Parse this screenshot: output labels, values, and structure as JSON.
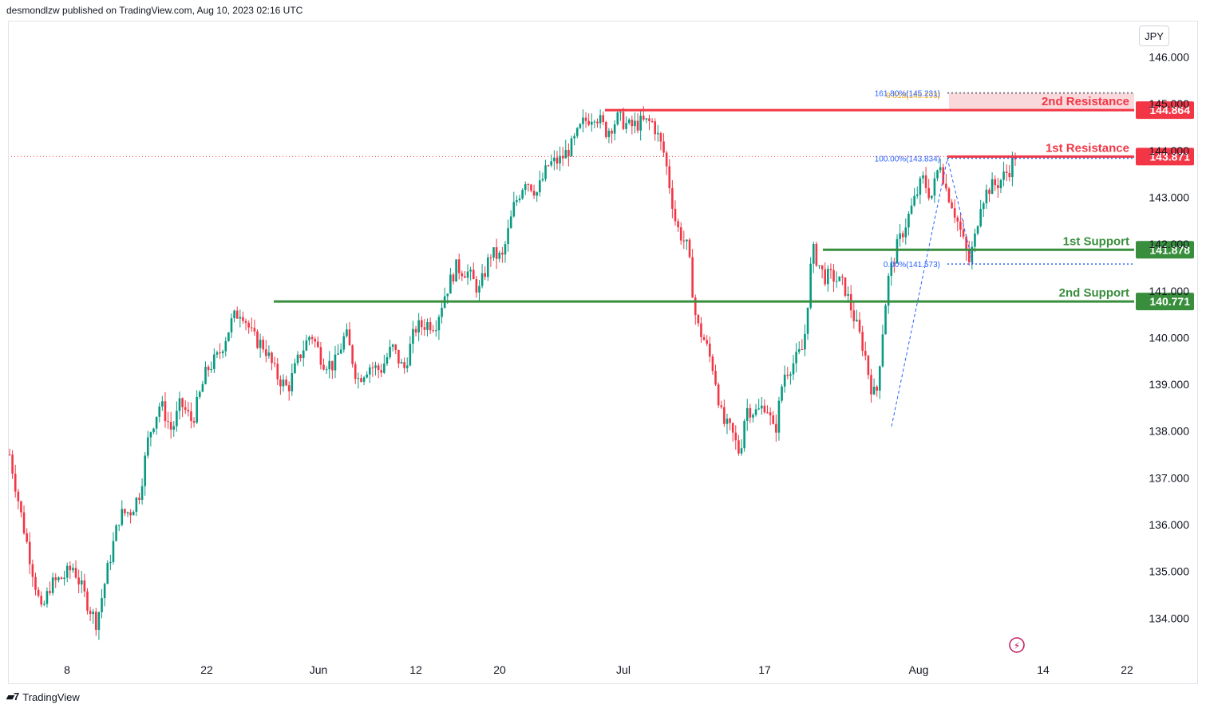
{
  "header": {
    "publisher": "desmondlzw published on TradingView.com, Aug 10, 2023 02:16 UTC"
  },
  "footer": {
    "brand": "TradingView"
  },
  "currency": "JPY",
  "colors": {
    "up": "#089981",
    "down": "#f23645",
    "resistance": "#f23645",
    "support": "#388e3c",
    "fib": "#2962ff",
    "fib_ext": "#f7a600"
  },
  "chart_data": {
    "type": "candlestick",
    "title": "",
    "ylim": [
      133.5,
      146.6
    ],
    "y_ticks": [
      "146.000",
      "145.000",
      "144.000",
      "143.000",
      "142.000",
      "141.000",
      "140.000",
      "139.000",
      "138.000",
      "137.000",
      "136.000",
      "135.000",
      "134.000"
    ],
    "x_ticks": [
      "8",
      "22",
      "Jun",
      "12",
      "20",
      "Jul",
      "17",
      "Aug",
      "14",
      "22"
    ],
    "levels": [
      {
        "label": "2nd Resistance",
        "value": 144.864,
        "price_label": "144.864",
        "kind": "resistance"
      },
      {
        "label": "1st Resistance",
        "value": 143.871,
        "price_label": "143.871",
        "kind": "resistance"
      },
      {
        "label": "1st Support",
        "value": 141.878,
        "price_label": "141.878",
        "kind": "support"
      },
      {
        "label": "2nd Support",
        "value": 140.771,
        "price_label": "140.771",
        "kind": "support"
      }
    ],
    "fib_labels": [
      {
        "text": "0.618(145.193)",
        "value": 145.193
      },
      {
        "text": "161.80%(145.231)",
        "value": 145.231
      },
      {
        "text": "100.00%(143.834)",
        "value": 143.834
      },
      {
        "text": "0.00%(141.573)",
        "value": 141.573
      }
    ],
    "close_path": [
      [
        0,
        137.5
      ],
      [
        4,
        136.2
      ],
      [
        8,
        135.0
      ],
      [
        11,
        134.1
      ],
      [
        14,
        134.7
      ],
      [
        19,
        134.9
      ],
      [
        22,
        135.1
      ],
      [
        27,
        134.3
      ],
      [
        30,
        133.9
      ],
      [
        34,
        135.1
      ],
      [
        38,
        136.2
      ],
      [
        42,
        136.3
      ],
      [
        45,
        136.7
      ],
      [
        48,
        137.9
      ],
      [
        52,
        138.6
      ],
      [
        56,
        138.0
      ],
      [
        59,
        138.6
      ],
      [
        63,
        138.2
      ],
      [
        68,
        139.3
      ],
      [
        72,
        139.6
      ],
      [
        77,
        140.4
      ],
      [
        80,
        140.6
      ],
      [
        84,
        140.0
      ],
      [
        88,
        139.8
      ],
      [
        92,
        139.2
      ],
      [
        96,
        138.9
      ],
      [
        100,
        139.6
      ],
      [
        104,
        140.1
      ],
      [
        108,
        139.5
      ],
      [
        112,
        139.4
      ],
      [
        116,
        140.1
      ],
      [
        120,
        139.1
      ],
      [
        124,
        139.4
      ],
      [
        128,
        139.3
      ],
      [
        132,
        139.8
      ],
      [
        136,
        139.3
      ],
      [
        140,
        140.2
      ],
      [
        144,
        140.3
      ],
      [
        147,
        140.3
      ],
      [
        150,
        140.9
      ],
      [
        154,
        141.5
      ],
      [
        158,
        141.4
      ],
      [
        162,
        141.0
      ],
      [
        166,
        141.8
      ],
      [
        170,
        141.7
      ],
      [
        174,
        142.8
      ],
      [
        178,
        143.4
      ],
      [
        182,
        143.1
      ],
      [
        186,
        143.7
      ],
      [
        190,
        143.8
      ],
      [
        194,
        144.1
      ],
      [
        198,
        144.6
      ],
      [
        202,
        144.8
      ],
      [
        206,
        144.4
      ],
      [
        210,
        144.7
      ],
      [
        214,
        144.5
      ],
      [
        218,
        144.6
      ],
      [
        222,
        144.6
      ],
      [
        226,
        143.9
      ],
      [
        230,
        142.4
      ],
      [
        234,
        141.9
      ],
      [
        237,
        140.3
      ],
      [
        240,
        139.9
      ],
      [
        243,
        139.3
      ],
      [
        246,
        138.2
      ],
      [
        249,
        138.0
      ],
      [
        252,
        137.5
      ],
      [
        254,
        138.5
      ],
      [
        258,
        138.4
      ],
      [
        261,
        138.6
      ],
      [
        264,
        137.9
      ],
      [
        267,
        139.2
      ],
      [
        271,
        139.5
      ],
      [
        274,
        139.8
      ],
      [
        277,
        141.9
      ],
      [
        281,
        141.3
      ],
      [
        284,
        141.3
      ],
      [
        288,
        141.1
      ],
      [
        292,
        140.3
      ],
      [
        295,
        139.7
      ],
      [
        297,
        139.0
      ],
      [
        299,
        138.7
      ],
      [
        301,
        140.0
      ],
      [
        303,
        141.2
      ],
      [
        306,
        141.9
      ],
      [
        309,
        142.4
      ],
      [
        312,
        142.9
      ],
      [
        315,
        143.4
      ],
      [
        318,
        143.0
      ],
      [
        320,
        143.5
      ],
      [
        321,
        143.8
      ],
      [
        323,
        143.2
      ],
      [
        325,
        142.9
      ],
      [
        328,
        142.3
      ],
      [
        331,
        141.6
      ],
      [
        333,
        142.1
      ],
      [
        335,
        142.9
      ],
      [
        338,
        143.2
      ],
      [
        341,
        143.3
      ],
      [
        345,
        143.6
      ],
      [
        347,
        143.9
      ]
    ],
    "candles": {
      "start": "2023-05-01",
      "end": "2023-08-10",
      "frequency": "hourly"
    }
  }
}
